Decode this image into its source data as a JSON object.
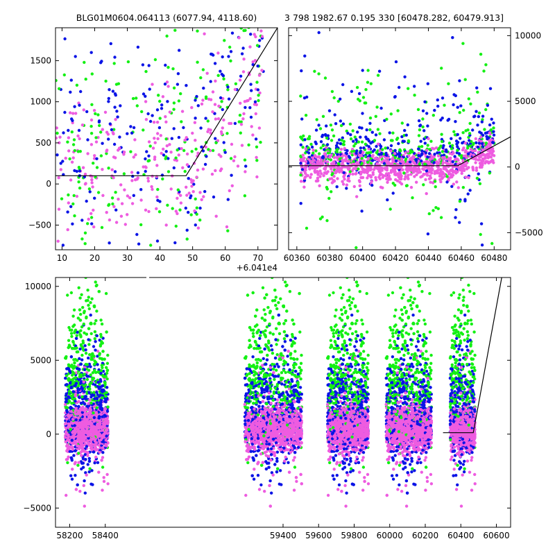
{
  "titles": {
    "left": "BLG01M0604.064113 (6077.94, 4118.60)",
    "right": "3 798 1982.67 0.195 330 [60478.282, 60479.913]"
  },
  "colors": {
    "blue": "#0a14e6",
    "green": "#14f014",
    "pink": "#ee5ce0",
    "line": "#000000"
  },
  "chart_data": [
    {
      "id": "top-left",
      "type": "scatter",
      "title": "BLG01M0604.064113 (6077.94, 4118.60)",
      "xlabel": "",
      "ylabel": "",
      "xlim": [
        8,
        76
      ],
      "ylim": [
        -800,
        1900
      ],
      "x_offset_label": "+6.041e4",
      "xticks": [
        10,
        20,
        30,
        40,
        50,
        60,
        70
      ],
      "xtick_labels": [
        "10",
        "20",
        "30",
        "40",
        "50",
        "60",
        "70"
      ],
      "yticks": [
        -500,
        0,
        500,
        1000,
        1500
      ],
      "ytick_labels": [
        "−500",
        "0",
        "500",
        "1000",
        "1500"
      ],
      "series": [
        {
          "color": "blue",
          "description_points": "dense cloud 8-70, rising after 48"
        },
        {
          "color": "green"
        },
        {
          "color": "pink"
        }
      ],
      "model_line": {
        "x": [
          8,
          48,
          76
        ],
        "y": [
          100,
          100,
          1900
        ]
      },
      "grid": false
    },
    {
      "id": "top-right",
      "type": "scatter",
      "title": "3 798 1982.67 0.195 330 [60478.282, 60479.913]",
      "xlim": [
        60355,
        60490
      ],
      "ylim": [
        -6300,
        10600
      ],
      "xticks": [
        60360,
        60380,
        60400,
        60420,
        60440,
        60460,
        60480
      ],
      "xtick_labels": [
        "60360",
        "60380",
        "60400",
        "60420",
        "60440",
        "60460",
        "60480"
      ],
      "yticks": [
        -5000,
        0,
        5000,
        10000
      ],
      "ytick_labels": [
        "−5000",
        "0",
        "5000",
        "10000"
      ],
      "y_axis_side": "right",
      "model_line": {
        "x": [
          60355,
          60458,
          60490
        ],
        "y": [
          100,
          100,
          2300
        ]
      },
      "grid": false
    },
    {
      "id": "bottom",
      "type": "scatter",
      "xlim": [
        58120,
        60680
      ],
      "ylim": [
        -6300,
        10600
      ],
      "xticks": [
        58200,
        58400,
        59400,
        59600,
        59800,
        60000,
        60200,
        60400,
        60600
      ],
      "xtick_labels": [
        "58200",
        "58400",
        "59400",
        "59600",
        "59800",
        "60000",
        "60200",
        "60400",
        "60600"
      ],
      "yticks": [
        -5000,
        0,
        5000,
        10000
      ],
      "ytick_labels": [
        "−5000",
        "0",
        "5000",
        "10000"
      ],
      "seasons": [
        {
          "x0": 58175,
          "x1": 58415
        },
        {
          "x0": 59185,
          "x1": 59505
        },
        {
          "x0": 59650,
          "x1": 59880
        },
        {
          "x0": 59980,
          "x1": 60235
        },
        {
          "x0": 60340,
          "x1": 60480
        }
      ],
      "model_line": {
        "x": [
          60300,
          60470,
          60630
        ],
        "y": [
          100,
          100,
          10600
        ]
      },
      "grid": false
    }
  ]
}
